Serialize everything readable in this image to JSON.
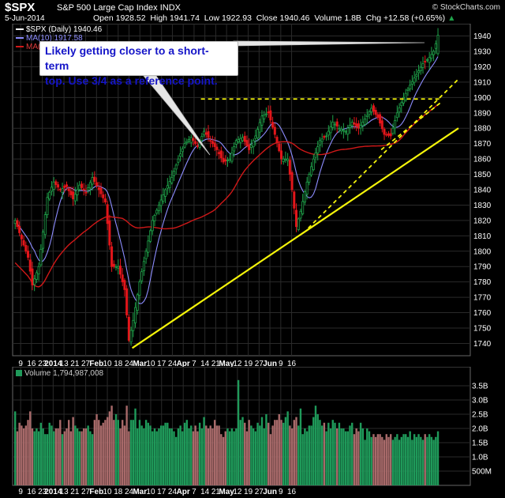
{
  "header": {
    "ticker": "$SPX",
    "name": "S&P 500 Large Cap Index",
    "exchange": "INDX",
    "brand": "© StockCharts.com",
    "date": "5-Jun-2014",
    "open_label": "Open",
    "open": "1928.52",
    "high_label": "High",
    "high": "1941.74",
    "low_label": "Low",
    "low": "1922.93",
    "close_label": "Close",
    "close": "1940.46",
    "volume_label": "Volume",
    "volume": "1.8B",
    "chg_label": "Chg",
    "chg": "+12.58 (+0.65%)",
    "chg_arrow": "▲"
  },
  "legend": {
    "price": "$SPX (Daily) 1940.46",
    "ma_fast": "MA(10) 1917.58",
    "ma_slow": "MA(50)",
    "volume": "Volume 1,794,987,008"
  },
  "annotation": {
    "line1": "Likely getting closer to a short-term",
    "line2": "top. Use 3/4 as a reference point."
  },
  "colors": {
    "up": "#1fa34a",
    "down": "#e3161b",
    "ma_fast": "#8d8dff",
    "ma_slow": "#d01818",
    "trend": "#f4f40a",
    "vol_up": "#1f9a5a",
    "vol_down": "#a86a6a",
    "grid": "#2a2a2a"
  },
  "chart_data": [
    {
      "type": "candlestick",
      "title": "$SPX (Daily) 1940.46",
      "ylim": [
        1732,
        1948
      ],
      "yticks": [
        1740,
        1750,
        1760,
        1770,
        1780,
        1790,
        1800,
        1810,
        1820,
        1830,
        1840,
        1850,
        1860,
        1870,
        1880,
        1890,
        1900,
        1910,
        1920,
        1930,
        1940
      ],
      "x_tick_labels": [
        "9",
        "16",
        "23",
        "2014",
        "13",
        "21",
        "27",
        "Feb",
        "10",
        "18",
        "24",
        "Mar",
        "10",
        "17",
        "24",
        "Apr",
        "7",
        "14",
        "21",
        "May",
        "12",
        "19",
        "27",
        "Jun",
        "9",
        "16"
      ],
      "close_anchors": [
        {
          "x": 0,
          "close": 1820
        },
        {
          "x": 3,
          "close": 1808
        },
        {
          "x": 6,
          "close": 1796
        },
        {
          "x": 8,
          "close": 1778
        },
        {
          "x": 11,
          "close": 1790
        },
        {
          "x": 15,
          "close": 1835
        },
        {
          "x": 18,
          "close": 1845
        },
        {
          "x": 21,
          "close": 1840
        },
        {
          "x": 24,
          "close": 1842
        },
        {
          "x": 27,
          "close": 1834
        },
        {
          "x": 30,
          "close": 1843
        },
        {
          "x": 33,
          "close": 1838
        },
        {
          "x": 36,
          "close": 1848
        },
        {
          "x": 39,
          "close": 1840
        },
        {
          "x": 42,
          "close": 1832
        },
        {
          "x": 45,
          "close": 1790
        },
        {
          "x": 48,
          "close": 1790
        },
        {
          "x": 51,
          "close": 1775
        },
        {
          "x": 53,
          "close": 1742
        },
        {
          "x": 55,
          "close": 1755
        },
        {
          "x": 58,
          "close": 1780
        },
        {
          "x": 61,
          "close": 1800
        },
        {
          "x": 64,
          "close": 1820
        },
        {
          "x": 67,
          "close": 1830
        },
        {
          "x": 70,
          "close": 1840
        },
        {
          "x": 73,
          "close": 1848
        },
        {
          "x": 76,
          "close": 1860
        },
        {
          "x": 79,
          "close": 1870
        },
        {
          "x": 82,
          "close": 1874
        },
        {
          "x": 85,
          "close": 1868
        },
        {
          "x": 88,
          "close": 1878
        },
        {
          "x": 91,
          "close": 1872
        },
        {
          "x": 94,
          "close": 1866
        },
        {
          "x": 97,
          "close": 1858
        },
        {
          "x": 100,
          "close": 1860
        },
        {
          "x": 103,
          "close": 1872
        },
        {
          "x": 106,
          "close": 1874
        },
        {
          "x": 109,
          "close": 1866
        },
        {
          "x": 112,
          "close": 1875
        },
        {
          "x": 115,
          "close": 1888
        },
        {
          "x": 118,
          "close": 1890
        },
        {
          "x": 121,
          "close": 1876
        },
        {
          "x": 124,
          "close": 1860
        },
        {
          "x": 127,
          "close": 1860
        },
        {
          "x": 129,
          "close": 1840
        },
        {
          "x": 131,
          "close": 1816
        },
        {
          "x": 133,
          "close": 1826
        },
        {
          "x": 136,
          "close": 1845
        },
        {
          "x": 139,
          "close": 1860
        },
        {
          "x": 142,
          "close": 1872
        },
        {
          "x": 145,
          "close": 1875
        },
        {
          "x": 148,
          "close": 1884
        },
        {
          "x": 151,
          "close": 1880
        },
        {
          "x": 154,
          "close": 1878
        },
        {
          "x": 157,
          "close": 1884
        },
        {
          "x": 160,
          "close": 1880
        },
        {
          "x": 163,
          "close": 1886
        },
        {
          "x": 166,
          "close": 1893
        },
        {
          "x": 169,
          "close": 1887
        },
        {
          "x": 172,
          "close": 1876
        },
        {
          "x": 175,
          "close": 1875
        },
        {
          "x": 178,
          "close": 1890
        },
        {
          "x": 181,
          "close": 1900
        },
        {
          "x": 184,
          "close": 1908
        },
        {
          "x": 187,
          "close": 1915
        },
        {
          "x": 190,
          "close": 1922
        },
        {
          "x": 193,
          "close": 1926
        },
        {
          "x": 195,
          "close": 1930
        },
        {
          "x": 197,
          "close": 1940
        }
      ],
      "moving_averages": [
        {
          "name": "MA(10) 1917.58",
          "window": 10,
          "color": "#8d8dff"
        },
        {
          "name": "MA(50)",
          "window": 50,
          "color": "#d01818"
        }
      ],
      "trendlines": [
        {
          "style": "dashed",
          "from": {
            "x": 87,
            "price": 1899
          },
          "to": {
            "x": 199,
            "price": 1899
          }
        },
        {
          "style": "dashed",
          "from": {
            "x": 137,
            "price": 1815
          },
          "to": {
            "x": 207,
            "price": 1912
          }
        },
        {
          "style": "dashed",
          "from": {
            "x": 171,
            "price": 1866
          },
          "to": {
            "x": 199,
            "price": 1897
          }
        },
        {
          "style": "solid",
          "from": {
            "x": 55,
            "price": 1737
          },
          "to": {
            "x": 207,
            "price": 1880
          }
        }
      ]
    },
    {
      "type": "bar",
      "title": "Volume 1,794,987,008",
      "ylim": [
        0,
        4
      ],
      "yticks": [
        "500M",
        "1.0B",
        "1.5B",
        "2.0B",
        "2.5B",
        "3.0B",
        "3.5B"
      ],
      "values_B": [
        2.6,
        1.9,
        2.2,
        2.1,
        2.0,
        2.1,
        2.3,
        2.6,
        2.0,
        1.9,
        2.0,
        1.9,
        2.2,
        2.0,
        1.8,
        1.8,
        2.2,
        2.1,
        1.9,
        2.0,
        2.0,
        2.3,
        1.8,
        1.9,
        2.0,
        2.3,
        1.9,
        2.4,
        2.1,
        2.0,
        1.9,
        1.9,
        2.0,
        2.0,
        2.1,
        1.9,
        1.8,
        2.3,
        2.5,
        2.3,
        2.1,
        2.2,
        2.3,
        2.4,
        2.6,
        2.8,
        2.3,
        2.5,
        2.3,
        2.0,
        2.3,
        2.1,
        2.8,
        1.9,
        2.3,
        2.3,
        2.7,
        2.0,
        2.3,
        2.1,
        2.0,
        2.3,
        2.2,
        2.1,
        1.9,
        2.0,
        1.9,
        2.0,
        2.1,
        2.1,
        2.2,
        2.2,
        2.0,
        2.0,
        1.9,
        1.7,
        2.0,
        2.1,
        1.9,
        2.2,
        2.3,
        2.0,
        2.1,
        1.9,
        2.1,
        1.9,
        2.2,
        2.0,
        2.4,
        2.1,
        2.0,
        2.1,
        2.0,
        2.3,
        2.1,
        2.1,
        1.8,
        1.7,
        1.9,
        2.0,
        1.9,
        2.0,
        1.9,
        2.0,
        3.7,
        2.3,
        2.4,
        2.2,
        1.9,
        2.3,
        2.1,
        2.0,
        1.9,
        2.2,
        2.1,
        2.4,
        2.0,
        2.5,
        2.2,
        1.8,
        2.1,
        2.3,
        2.3,
        2.5,
        2.3,
        2.2,
        2.4,
        2.6,
        2.1,
        2.0,
        2.3,
        2.4,
        2.1,
        2.7,
        1.8,
        2.0,
        1.9,
        2.1,
        2.1,
        2.4,
        2.8,
        2.5,
        2.3,
        2.1,
        2.2,
        1.9,
        2.2,
        2.0,
        2.3,
        2.2,
        2.0,
        2.2,
        2.0,
        2.0,
        1.9,
        1.9,
        2.1,
        2.2,
        1.8,
        2.0,
        1.9,
        2.2,
        2.0,
        1.6,
        2.0,
        1.9,
        1.7,
        1.8,
        1.7,
        1.8,
        1.8,
        1.7,
        1.6,
        1.8,
        1.7,
        1.8,
        1.6,
        1.7,
        1.8,
        1.6,
        1.7,
        1.8,
        1.8,
        1.7,
        1.9,
        1.6,
        1.8,
        1.7,
        1.8,
        1.7,
        1.6,
        1.8,
        1.7,
        1.8,
        1.7,
        1.6,
        1.7,
        1.9,
        1.6,
        1.8,
        1.7,
        1.8
      ]
    }
  ]
}
